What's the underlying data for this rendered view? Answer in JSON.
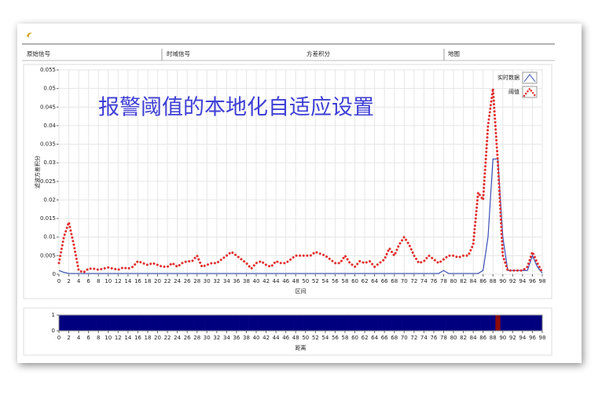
{
  "tabs": [
    "原始信号",
    "时域信号",
    "方差积分",
    "地图"
  ],
  "chart_data": [
    {
      "type": "line",
      "title": "报警阈值的本地化自适应设置",
      "y_label": "滤波方差积分",
      "x_label": "区间",
      "x": [
        0,
        1,
        2,
        3,
        4,
        5,
        6,
        7,
        8,
        9,
        10,
        11,
        12,
        13,
        14,
        15,
        16,
        17,
        18,
        19,
        20,
        21,
        22,
        23,
        24,
        25,
        26,
        27,
        28,
        29,
        30,
        31,
        32,
        33,
        34,
        35,
        36,
        37,
        38,
        39,
        40,
        41,
        42,
        43,
        44,
        45,
        46,
        47,
        48,
        49,
        50,
        51,
        52,
        53,
        54,
        55,
        56,
        57,
        58,
        59,
        60,
        61,
        62,
        63,
        64,
        65,
        66,
        67,
        68,
        69,
        70,
        71,
        72,
        73,
        74,
        75,
        76,
        77,
        78,
        79,
        80,
        81,
        82,
        83,
        84,
        85,
        86,
        87,
        88,
        89,
        90,
        91,
        92,
        93,
        94,
        95,
        96,
        97,
        98
      ],
      "series": [
        {
          "name": "实时数据",
          "color": "#3a4fb5",
          "style": "solid",
          "values": [
            0.001,
            0.0005,
            0.0002,
            0.0002,
            0.0002,
            0.0002,
            0.0002,
            0.0002,
            0.0002,
            0.0002,
            0.0002,
            0.0002,
            0.0002,
            0.0002,
            0.0002,
            0.0002,
            0.0002,
            0.0002,
            0.0002,
            0.0002,
            0.0002,
            0.0002,
            0.0002,
            0.0002,
            0.0002,
            0.0002,
            0.0002,
            0.0002,
            0.0002,
            0.0002,
            0.0002,
            0.0002,
            0.0002,
            0.0002,
            0.0002,
            0.0002,
            0.0002,
            0.0002,
            0.0002,
            0.0002,
            0.0002,
            0.0002,
            0.0002,
            0.0002,
            0.0002,
            0.0002,
            0.0002,
            0.0002,
            0.0002,
            0.0002,
            0.0002,
            0.0002,
            0.0002,
            0.0002,
            0.0002,
            0.0002,
            0.0002,
            0.0002,
            0.0002,
            0.0002,
            0.0002,
            0.0002,
            0.0002,
            0.0002,
            0.0002,
            0.0002,
            0.0002,
            0.0002,
            0.0002,
            0.0002,
            0.0002,
            0.0002,
            0.0002,
            0.0002,
            0.0002,
            0.0002,
            0.0002,
            0.0002,
            0.001,
            0.0002,
            0.0002,
            0.0002,
            0.0002,
            0.0002,
            0.0002,
            0.0002,
            0.001,
            0.01,
            0.031,
            0.031,
            0.01,
            0.001,
            0.001,
            0.001,
            0.001,
            0.001,
            0.005,
            0.002,
            0.0003
          ]
        },
        {
          "name": "阈值",
          "color": "#e03030",
          "style": "dotted",
          "values": [
            0.003,
            0.01,
            0.014,
            0.008,
            0.001,
            0.0005,
            0.0015,
            0.0015,
            0.0012,
            0.0015,
            0.0018,
            0.0015,
            0.0012,
            0.0018,
            0.0015,
            0.002,
            0.0035,
            0.003,
            0.0025,
            0.003,
            0.0025,
            0.002,
            0.002,
            0.003,
            0.002,
            0.003,
            0.0035,
            0.0035,
            0.005,
            0.002,
            0.0025,
            0.003,
            0.003,
            0.004,
            0.005,
            0.006,
            0.005,
            0.004,
            0.003,
            0.0015,
            0.003,
            0.0035,
            0.0025,
            0.002,
            0.0035,
            0.003,
            0.003,
            0.004,
            0.005,
            0.005,
            0.005,
            0.005,
            0.006,
            0.0055,
            0.005,
            0.004,
            0.003,
            0.003,
            0.005,
            0.003,
            0.002,
            0.0035,
            0.003,
            0.0035,
            0.002,
            0.003,
            0.004,
            0.007,
            0.005,
            0.008,
            0.01,
            0.008,
            0.005,
            0.003,
            0.0035,
            0.005,
            0.004,
            0.003,
            0.004,
            0.005,
            0.005,
            0.0045,
            0.005,
            0.005,
            0.008,
            0.022,
            0.02,
            0.04,
            0.05,
            0.03,
            0.005,
            0.001,
            0.001,
            0.001,
            0.001,
            0.002,
            0.006,
            0.003,
            0.0005
          ]
        }
      ],
      "xlim": [
        0,
        98
      ],
      "xticks": [
        0,
        2,
        4,
        6,
        8,
        10,
        12,
        14,
        16,
        18,
        20,
        22,
        24,
        26,
        28,
        30,
        32,
        34,
        36,
        38,
        40,
        42,
        44,
        46,
        48,
        50,
        52,
        54,
        56,
        58,
        60,
        62,
        64,
        66,
        68,
        70,
        72,
        74,
        76,
        78,
        80,
        82,
        84,
        86,
        88,
        90,
        92,
        94,
        96,
        98
      ],
      "ylim": [
        0,
        0.055
      ],
      "yticks": [
        0,
        0.005,
        0.01,
        0.015,
        0.02,
        0.025,
        0.03,
        0.035,
        0.04,
        0.045,
        0.05,
        0.055
      ],
      "grid": true,
      "legend": "upper right"
    },
    {
      "type": "heatmap",
      "x_label": "距离",
      "x": [
        0,
        1,
        2,
        3,
        4,
        5,
        6,
        7,
        8,
        9,
        10,
        11,
        12,
        13,
        14,
        15,
        16,
        17,
        18,
        19,
        20,
        21,
        22,
        23,
        24,
        25,
        26,
        27,
        28,
        29,
        30,
        31,
        32,
        33,
        34,
        35,
        36,
        37,
        38,
        39,
        40,
        41,
        42,
        43,
        44,
        45,
        46,
        47,
        48,
        49,
        50,
        51,
        52,
        53,
        54,
        55,
        56,
        57,
        58,
        59,
        60,
        61,
        62,
        63,
        64,
        65,
        66,
        67,
        68,
        69,
        70,
        71,
        72,
        73,
        74,
        75,
        76,
        77,
        78,
        79,
        80,
        81,
        82,
        83,
        84,
        85,
        86,
        87,
        88,
        89,
        90,
        91,
        92,
        93,
        94,
        95,
        96,
        97,
        98
      ],
      "values": [
        0,
        0,
        0,
        0,
        0,
        0,
        0,
        0,
        0,
        0,
        0,
        0,
        0,
        0,
        0,
        0,
        0,
        0,
        0,
        0,
        0,
        0,
        0,
        0,
        0,
        0,
        0,
        0,
        0,
        0,
        0,
        0,
        0,
        0,
        0,
        0,
        0,
        0,
        0,
        0,
        0,
        0,
        0,
        0,
        0,
        0,
        0,
        0,
        0,
        0,
        0,
        0,
        0,
        0,
        0,
        0,
        0,
        0,
        0,
        0,
        0,
        0,
        0,
        0,
        0,
        0,
        0,
        0,
        0,
        0,
        0,
        0,
        0,
        0,
        0,
        0,
        0,
        0,
        0,
        0,
        0,
        0,
        0,
        0,
        0,
        0,
        0,
        0,
        0,
        1,
        0,
        0,
        0,
        0,
        0,
        0,
        0,
        0,
        0
      ],
      "colors": [
        "#00007f",
        "#8b0a0a"
      ],
      "xlim": [
        0,
        98
      ],
      "xticks": [
        0,
        2,
        4,
        6,
        8,
        10,
        12,
        14,
        16,
        18,
        20,
        22,
        24,
        26,
        28,
        30,
        32,
        34,
        36,
        38,
        40,
        42,
        44,
        46,
        48,
        50,
        52,
        54,
        56,
        58,
        60,
        62,
        64,
        66,
        68,
        70,
        72,
        74,
        76,
        78,
        80,
        82,
        84,
        86,
        88,
        90,
        92,
        94,
        96,
        98
      ],
      "ylim": [
        0,
        1
      ],
      "yticks": [
        0,
        1
      ]
    }
  ]
}
